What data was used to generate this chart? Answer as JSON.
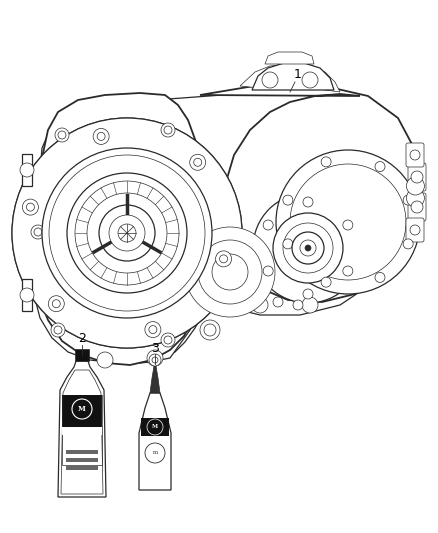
{
  "background_color": "#ffffff",
  "fig_width": 4.38,
  "fig_height": 5.33,
  "dpi": 100,
  "label_1": "1",
  "label_2": "2",
  "label_3": "3",
  "lc": "#2a2a2a",
  "lw_main": 0.9,
  "lw_thin": 0.5,
  "lw_thick": 1.3
}
